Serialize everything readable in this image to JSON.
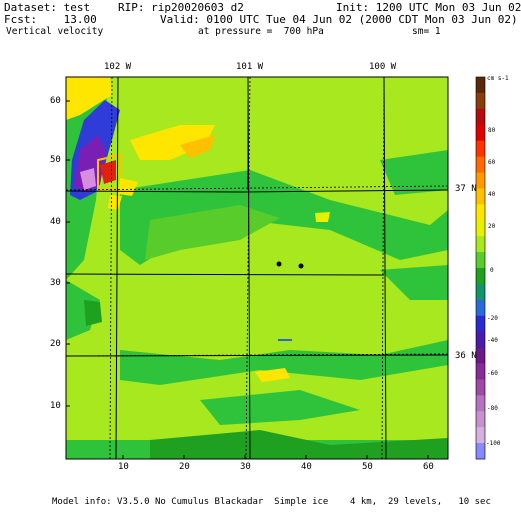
{
  "header": {
    "dataset": "Dataset: test",
    "rip": "RIP: rip20020603 d2",
    "init": "Init: 1200 UTC Mon 03 Jun 02",
    "fcst": "Fcst:    13.00",
    "valid": "Valid: 0100 UTC Tue 04 Jun 02 (2000 CDT Mon 03 Jun 02)",
    "field": "Vertical velocity",
    "pressure": "at pressure =  700 hPa",
    "sm": "sm= 1"
  },
  "map": {
    "top_lon_labels": [
      "102 W",
      "101 W",
      "100 W"
    ],
    "right_lat_labels": [
      "37 N",
      "36 N"
    ],
    "y_ticks": [
      "60",
      "50",
      "40",
      "30",
      "20",
      "10"
    ],
    "x_ticks": [
      "10",
      "20",
      "30",
      "40",
      "50",
      "60"
    ],
    "colors": {
      "frame": "#000000",
      "background_field": "#a8e81e",
      "green_dark": "#20a020",
      "green_mid": "#2ec33a",
      "yellow": "#ffe600",
      "blue": "#2f3cd8",
      "purple": "#7a1fb3",
      "pink": "#d68de0",
      "red": "#e02010"
    }
  },
  "colorbar": {
    "unit": "cm s-1",
    "labels": [
      "80",
      "60",
      "40",
      "20",
      "0",
      "-20",
      "-40",
      "-60",
      "-80",
      "-100"
    ],
    "colors": [
      "#5a2a08",
      "#8a3c0a",
      "#b30d0d",
      "#e00000",
      "#ff3300",
      "#ff6a00",
      "#ff9900",
      "#ffc000",
      "#ffe600",
      "#e6f000",
      "#a8e81e",
      "#58cc2a",
      "#20a020",
      "#12956a",
      "#2a6ad8",
      "#2a2ad0",
      "#4a1aa8",
      "#6a1a88",
      "#8a2a98",
      "#a04aa8",
      "#b870c0",
      "#c890d0",
      "#d8b0e0",
      "#8888ff"
    ]
  },
  "footer": {
    "model_info": "Model info: V3.5.0 No Cumulus Blackadar  Simple ice    4 km,  29 levels,   10 sec"
  }
}
